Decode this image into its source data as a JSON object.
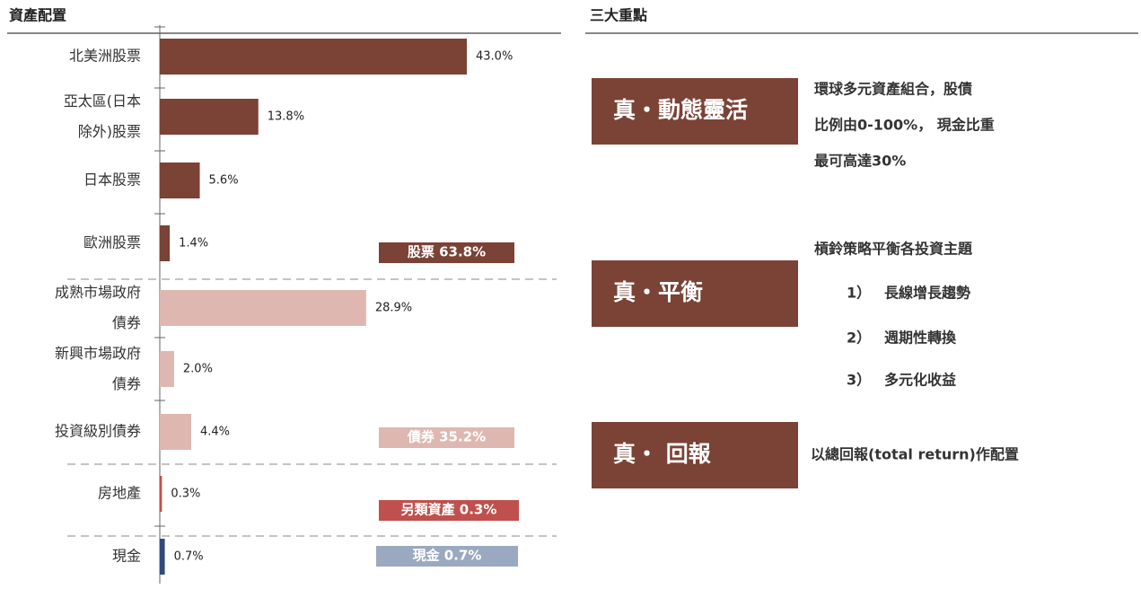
{
  "chart_data": {
    "type": "bar",
    "orientation": "horizontal",
    "title": "資產配置",
    "categories": [
      "北美洲股票",
      "亞太區(日本\n除外)股票",
      "日本股票",
      "歐洲股票",
      "成熟市場政府\n債券",
      "新興市場政府\n債券",
      "投資級別債券",
      "房地產",
      "現金"
    ],
    "values": [
      43.0,
      13.8,
      5.6,
      1.4,
      28.9,
      2.0,
      4.4,
      0.3,
      0.7
    ],
    "value_labels": [
      "43.0%",
      "13.8%",
      "5.6%",
      "1.4%",
      "28.9%",
      "2.0%",
      "4.4%",
      "0.3%",
      "0.7%"
    ],
    "colors": [
      "#7b4236",
      "#7b4236",
      "#7b4236",
      "#7b4236",
      "#deb8b0",
      "#deb8b0",
      "#deb8b0",
      "#c0504d",
      "#2f4b7c"
    ],
    "groups": [
      {
        "label": "股票 63.8%",
        "color": "#7b4236"
      },
      {
        "label": "債券 35.2%",
        "color": "#deb8b0"
      },
      {
        "label": "另類資產 0.3%",
        "color": "#c0504d"
      },
      {
        "label": "現金 0.7%",
        "color": "#9aa9bf"
      }
    ]
  },
  "panel": {
    "title": "三大重點",
    "items": [
      {
        "heading": "真・動態靈活",
        "lines": [
          "環球多元資產組合，股債",
          "比例由0-100%， 現金比重",
          "最可高達30%"
        ]
      },
      {
        "heading": "真・平衡",
        "lines": [
          "槓鈴策略平衡各投資主題"
        ],
        "list": [
          {
            "number": "1）",
            "text": "長線增長趨勢"
          },
          {
            "number": "2）",
            "text": "週期性轉換"
          },
          {
            "number": "3）",
            "text": "多元化收益"
          }
        ]
      },
      {
        "heading": "真・ 回報",
        "lines": [
          "以總回報(total return)作配置"
        ]
      }
    ]
  }
}
